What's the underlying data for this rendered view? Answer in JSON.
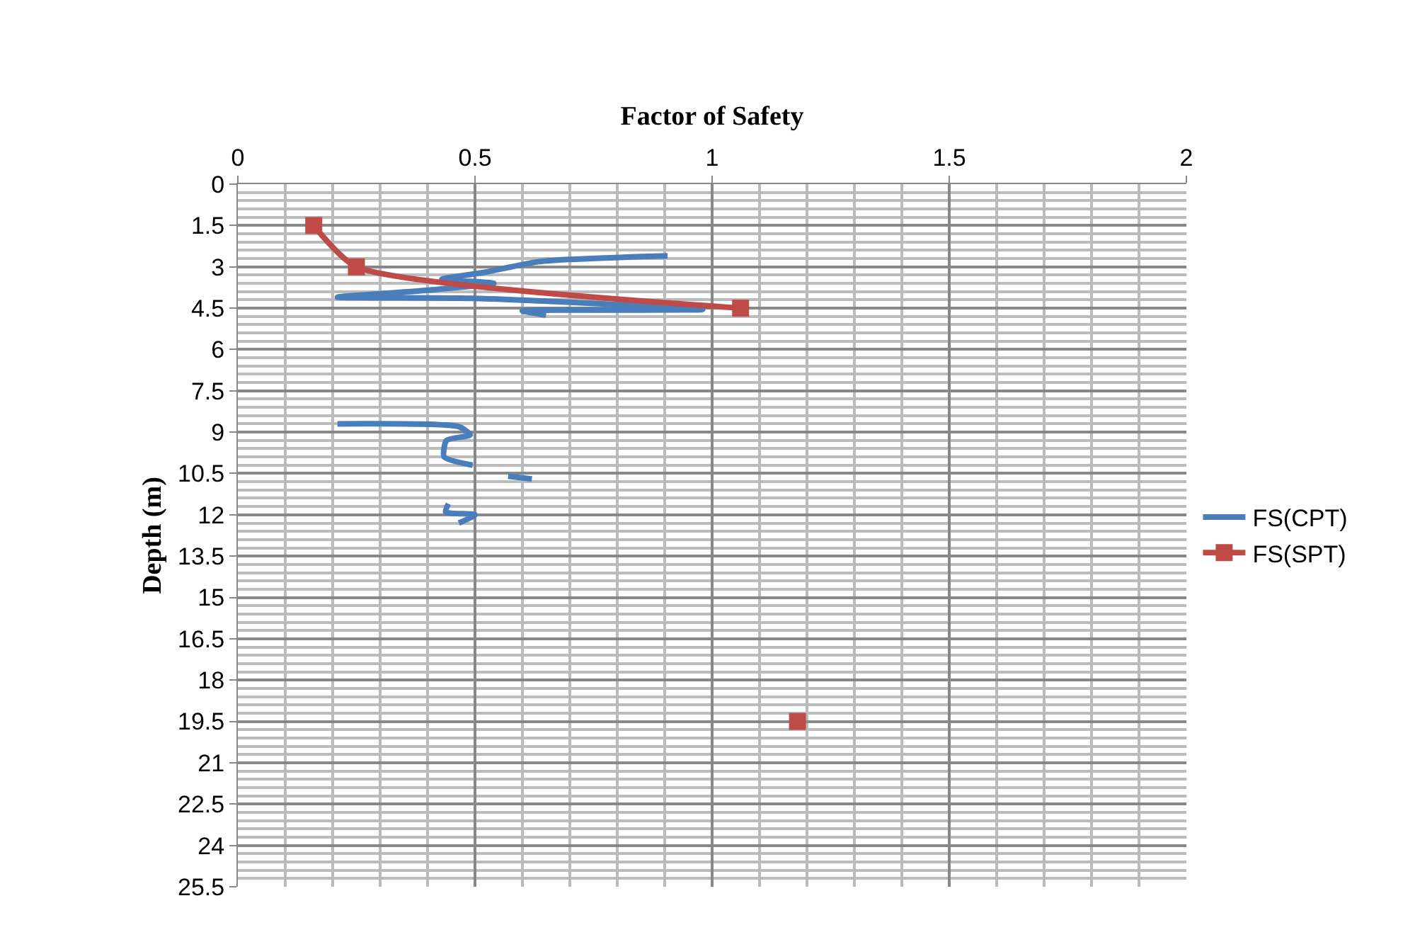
{
  "chart_data": {
    "type": "line",
    "xlabel": "Factor of Safety",
    "ylabel": "Depth (m)",
    "xlim": [
      0,
      2
    ],
    "xticks": [
      0,
      0.5,
      1,
      1.5,
      2
    ],
    "ylim": [
      25.5,
      0
    ],
    "yticks": [
      0,
      1.5,
      3,
      4.5,
      6,
      7.5,
      9,
      10.5,
      12,
      13.5,
      15,
      16.5,
      18,
      19.5,
      21,
      22.5,
      24,
      25.5
    ],
    "grid": true,
    "legend": "right",
    "series": [
      {
        "name": "FS(CPT)",
        "color": "#4a7ebb",
        "marker": "none",
        "x": [
          0.906,
          0.64,
          0.52,
          0.43,
          0.54,
          0.4,
          0.21,
          0.51,
          0.98,
          0.6,
          0.65,
          null,
          0.21,
          0.466,
          0.49,
          0.44,
          0.435,
          0.495,
          null,
          0.57,
          0.62,
          null,
          0.444,
          0.438,
          0.5,
          0.466
        ],
        "values": [
          2.6,
          2.8,
          3.2,
          3.45,
          3.6,
          3.85,
          4.1,
          4.15,
          4.55,
          4.6,
          4.75,
          null,
          8.7,
          8.8,
          9.1,
          9.3,
          9.9,
          10.2,
          null,
          10.6,
          10.7,
          null,
          11.6,
          11.9,
          12.0,
          12.3
        ]
      },
      {
        "name": "FS(SPT)",
        "color": "#be4b48",
        "marker": "square",
        "x": [
          0.16,
          0.25,
          1.06,
          null,
          1.18
        ],
        "values": [
          1.5,
          3,
          4.5,
          null,
          19.5
        ]
      }
    ]
  }
}
